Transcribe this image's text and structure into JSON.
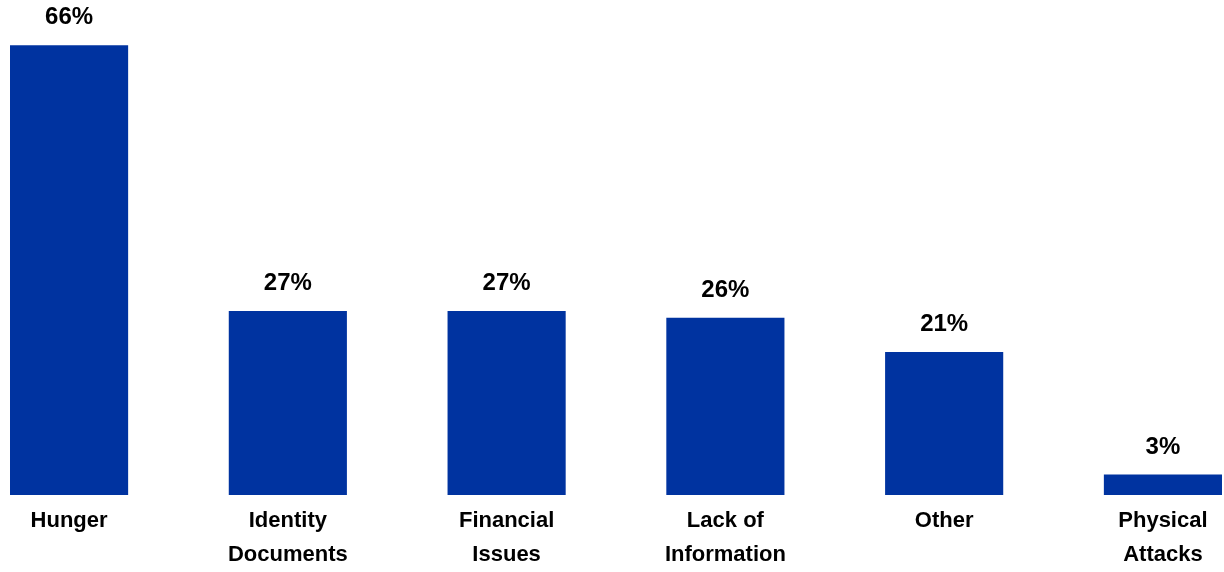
{
  "chart_data": {
    "type": "bar",
    "categories": [
      "Hunger",
      "Identity Documents",
      "Financial Issues",
      "Lack of Information",
      "Other",
      "Physical Attacks"
    ],
    "values": [
      66,
      27,
      27,
      26,
      21,
      3
    ],
    "value_labels": [
      "66%",
      "27%",
      "27%",
      "26%",
      "21%",
      "3%"
    ],
    "color": "#0033a0",
    "grid": false,
    "tick_labels": "x"
  }
}
